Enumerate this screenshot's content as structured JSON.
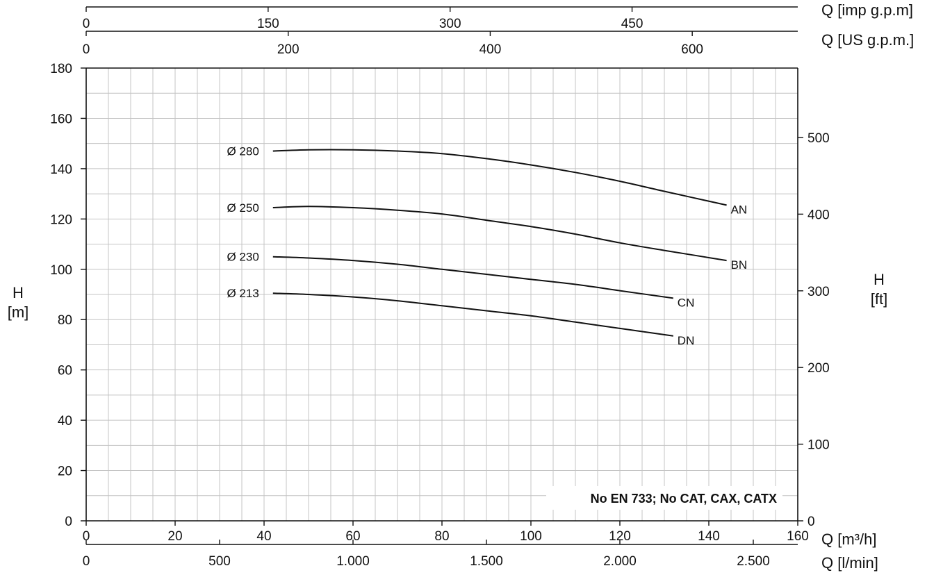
{
  "chart_data": {
    "type": "line",
    "title": "",
    "x_primary": {
      "label": "Q [m³/h]",
      "range": [
        0,
        160
      ],
      "ticks": [
        0,
        20,
        40,
        60,
        80,
        100,
        120,
        140,
        160
      ]
    },
    "x_secondary_axes": [
      {
        "label": "Q [l/min]",
        "position": "bottom",
        "ticks": [
          {
            "value": 0,
            "label": "0"
          },
          {
            "value": 500,
            "label": "500"
          },
          {
            "value": 1000,
            "label": "1.000"
          },
          {
            "value": 1500,
            "label": "1.500"
          },
          {
            "value": 2000,
            "label": "2.000"
          },
          {
            "value": 2500,
            "label": "2.500"
          }
        ]
      },
      {
        "label": "Q [US g.p.m.]",
        "position": "top",
        "ticks": [
          {
            "value": 0,
            "label": "0"
          },
          {
            "value": 200,
            "label": "200"
          },
          {
            "value": 400,
            "label": "400"
          },
          {
            "value": 600,
            "label": "600"
          }
        ]
      },
      {
        "label": "Q [imp g.p.m]",
        "position": "top",
        "ticks": [
          {
            "value": 0,
            "label": "0"
          },
          {
            "value": 150,
            "label": "150"
          },
          {
            "value": 300,
            "label": "300"
          },
          {
            "value": 450,
            "label": "450"
          }
        ]
      }
    ],
    "y_left": {
      "label_line1": "H",
      "label_line2": "[m]",
      "range": [
        0,
        180
      ],
      "ticks": [
        0,
        20,
        40,
        60,
        80,
        100,
        120,
        140,
        160,
        180
      ]
    },
    "y_right": {
      "label_line1": "H",
      "label_line2": "[ft]",
      "ticks": [
        0,
        100,
        200,
        300,
        400,
        500
      ]
    },
    "grid": true,
    "series": [
      {
        "name": "AN",
        "diameter_label": "Ø 280",
        "x": [
          42,
          50,
          60,
          70,
          80,
          90,
          100,
          110,
          120,
          130,
          144
        ],
        "y": [
          147,
          147.5,
          147.5,
          147,
          146,
          144,
          141.5,
          138.5,
          135,
          131,
          125.5
        ]
      },
      {
        "name": "BN",
        "diameter_label": "Ø 250",
        "x": [
          42,
          50,
          60,
          70,
          80,
          90,
          100,
          110,
          120,
          130,
          144
        ],
        "y": [
          124.5,
          125,
          124.5,
          123.5,
          122,
          119.5,
          117,
          114,
          110.5,
          107.5,
          103.5
        ]
      },
      {
        "name": "CN",
        "diameter_label": "Ø 230",
        "x": [
          42,
          50,
          60,
          70,
          80,
          90,
          100,
          110,
          120,
          132
        ],
        "y": [
          105,
          104.5,
          103.5,
          102,
          100,
          98,
          96,
          94,
          91.5,
          88.5
        ]
      },
      {
        "name": "DN",
        "diameter_label": "Ø 213",
        "x": [
          42,
          50,
          60,
          70,
          80,
          90,
          100,
          110,
          120,
          132
        ],
        "y": [
          90.5,
          90,
          89,
          87.5,
          85.5,
          83.5,
          81.5,
          79,
          76.5,
          73.5
        ]
      }
    ],
    "annotation": "No EN 733; No CAT, CAX, CATX"
  }
}
